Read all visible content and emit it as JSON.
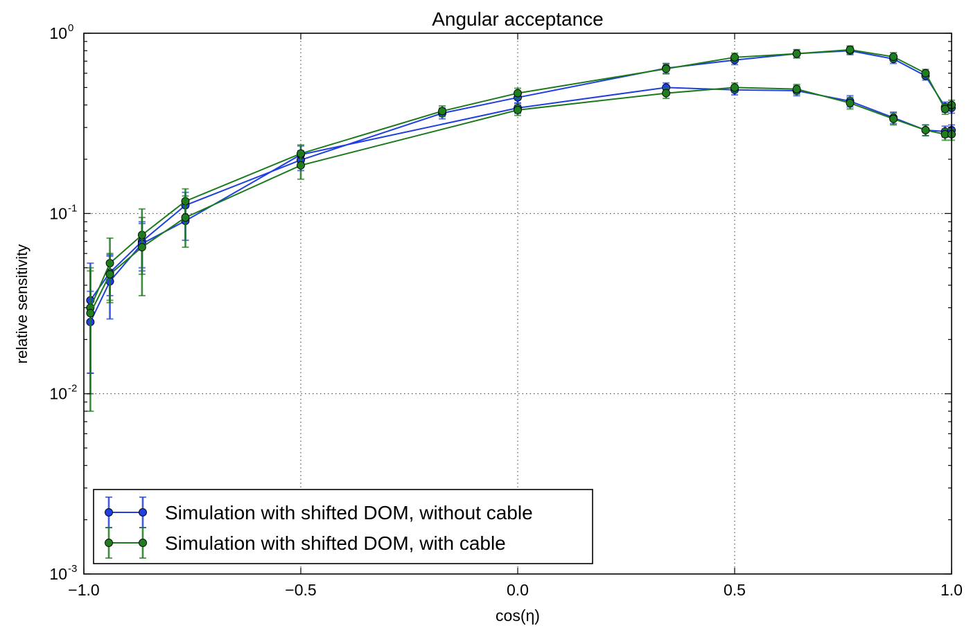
{
  "chart_data": {
    "type": "line",
    "title": "Angular acceptance",
    "xlabel": "cos(η)",
    "ylabel": "relative sensitivity",
    "xlim": [
      -1.0,
      1.0
    ],
    "ylim": [
      0.001,
      1.0
    ],
    "yscale": "log",
    "grid": true,
    "legend_position": "lower-left",
    "x_ticks": [
      {
        "value": -1.0,
        "label": "−1.0"
      },
      {
        "value": -0.5,
        "label": "−0.5"
      },
      {
        "value": 0.0,
        "label": "0.0"
      },
      {
        "value": 0.5,
        "label": "0.5"
      },
      {
        "value": 1.0,
        "label": "1.0"
      }
    ],
    "y_ticks": [
      {
        "value": 1.0,
        "base": "10",
        "exp": "0"
      },
      {
        "value": 0.1,
        "base": "10",
        "exp": "-1"
      },
      {
        "value": 0.01,
        "base": "10",
        "exp": "-2"
      },
      {
        "value": 0.001,
        "base": "10",
        "exp": "-3"
      }
    ],
    "series": [
      {
        "name": "Simulation with shifted DOM, without cable",
        "color": "#1f3fe0",
        "marker_fill": "#1f3fe0",
        "curves": [
          {
            "x": [
              -0.985,
              -0.94,
              -0.866,
              -0.766,
              -0.5,
              -0.174,
              0.0,
              0.342,
              0.5,
              0.643,
              0.766,
              0.866,
              0.94,
              0.985,
              1.0
            ],
            "y": [
              0.033,
              0.047,
              0.07,
              0.111,
              0.198,
              0.36,
              0.44,
              0.64,
              0.71,
              0.77,
              0.8,
              0.72,
              0.58,
              0.39,
              0.385
            ],
            "err": [
              0.02,
              0.012,
              0.02,
              0.02,
              0.025,
              0.025,
              0.03,
              0.04,
              0.04,
              0.04,
              0.04,
              0.04,
              0.03,
              0.025,
              0.025
            ]
          },
          {
            "x": [
              -0.985,
              -0.94,
              -0.866,
              -0.766,
              -0.5,
              0.0,
              0.342,
              0.5,
              0.643,
              0.766,
              0.866,
              0.94,
              0.985,
              1.0
            ],
            "y": [
              0.025,
              0.042,
              0.068,
              0.091,
              0.212,
              0.385,
              0.5,
              0.485,
              0.48,
              0.42,
              0.34,
              0.29,
              0.285,
              0.29
            ],
            "err": [
              0.012,
              0.016,
              0.02,
              0.02,
              0.025,
              0.025,
              0.03,
              0.03,
              0.03,
              0.03,
              0.025,
              0.02,
              0.02,
              0.02
            ]
          }
        ]
      },
      {
        "name": "Simulation with shifted DOM, with cable",
        "color": "#1a7a1a",
        "marker_fill": "#1f7f1f",
        "curves": [
          {
            "x": [
              -0.985,
              -0.94,
              -0.866,
              -0.766,
              -0.5,
              -0.174,
              0.0,
              0.342,
              0.5,
              0.643,
              0.766,
              0.866,
              0.94,
              0.985,
              1.0
            ],
            "y": [
              0.03,
              0.053,
              0.076,
              0.117,
              0.215,
              0.37,
              0.465,
              0.635,
              0.735,
              0.77,
              0.81,
              0.74,
              0.6,
              0.38,
              0.4
            ],
            "err": [
              0.02,
              0.02,
              0.03,
              0.02,
              0.025,
              0.025,
              0.03,
              0.04,
              0.04,
              0.04,
              0.04,
              0.04,
              0.03,
              0.025,
              0.025
            ]
          },
          {
            "x": [
              -0.985,
              -0.94,
              -0.866,
              -0.766,
              -0.5,
              0.0,
              0.342,
              0.5,
              0.643,
              0.766,
              0.866,
              0.94,
              0.985,
              1.0
            ],
            "y": [
              0.028,
              0.046,
              0.065,
              0.095,
              0.185,
              0.375,
              0.465,
              0.5,
              0.49,
              0.41,
              0.335,
              0.29,
              0.275,
              0.275
            ],
            "err": [
              0.02,
              0.014,
              0.03,
              0.03,
              0.03,
              0.025,
              0.03,
              0.03,
              0.03,
              0.03,
              0.025,
              0.02,
              0.02,
              0.02
            ]
          }
        ]
      }
    ]
  }
}
